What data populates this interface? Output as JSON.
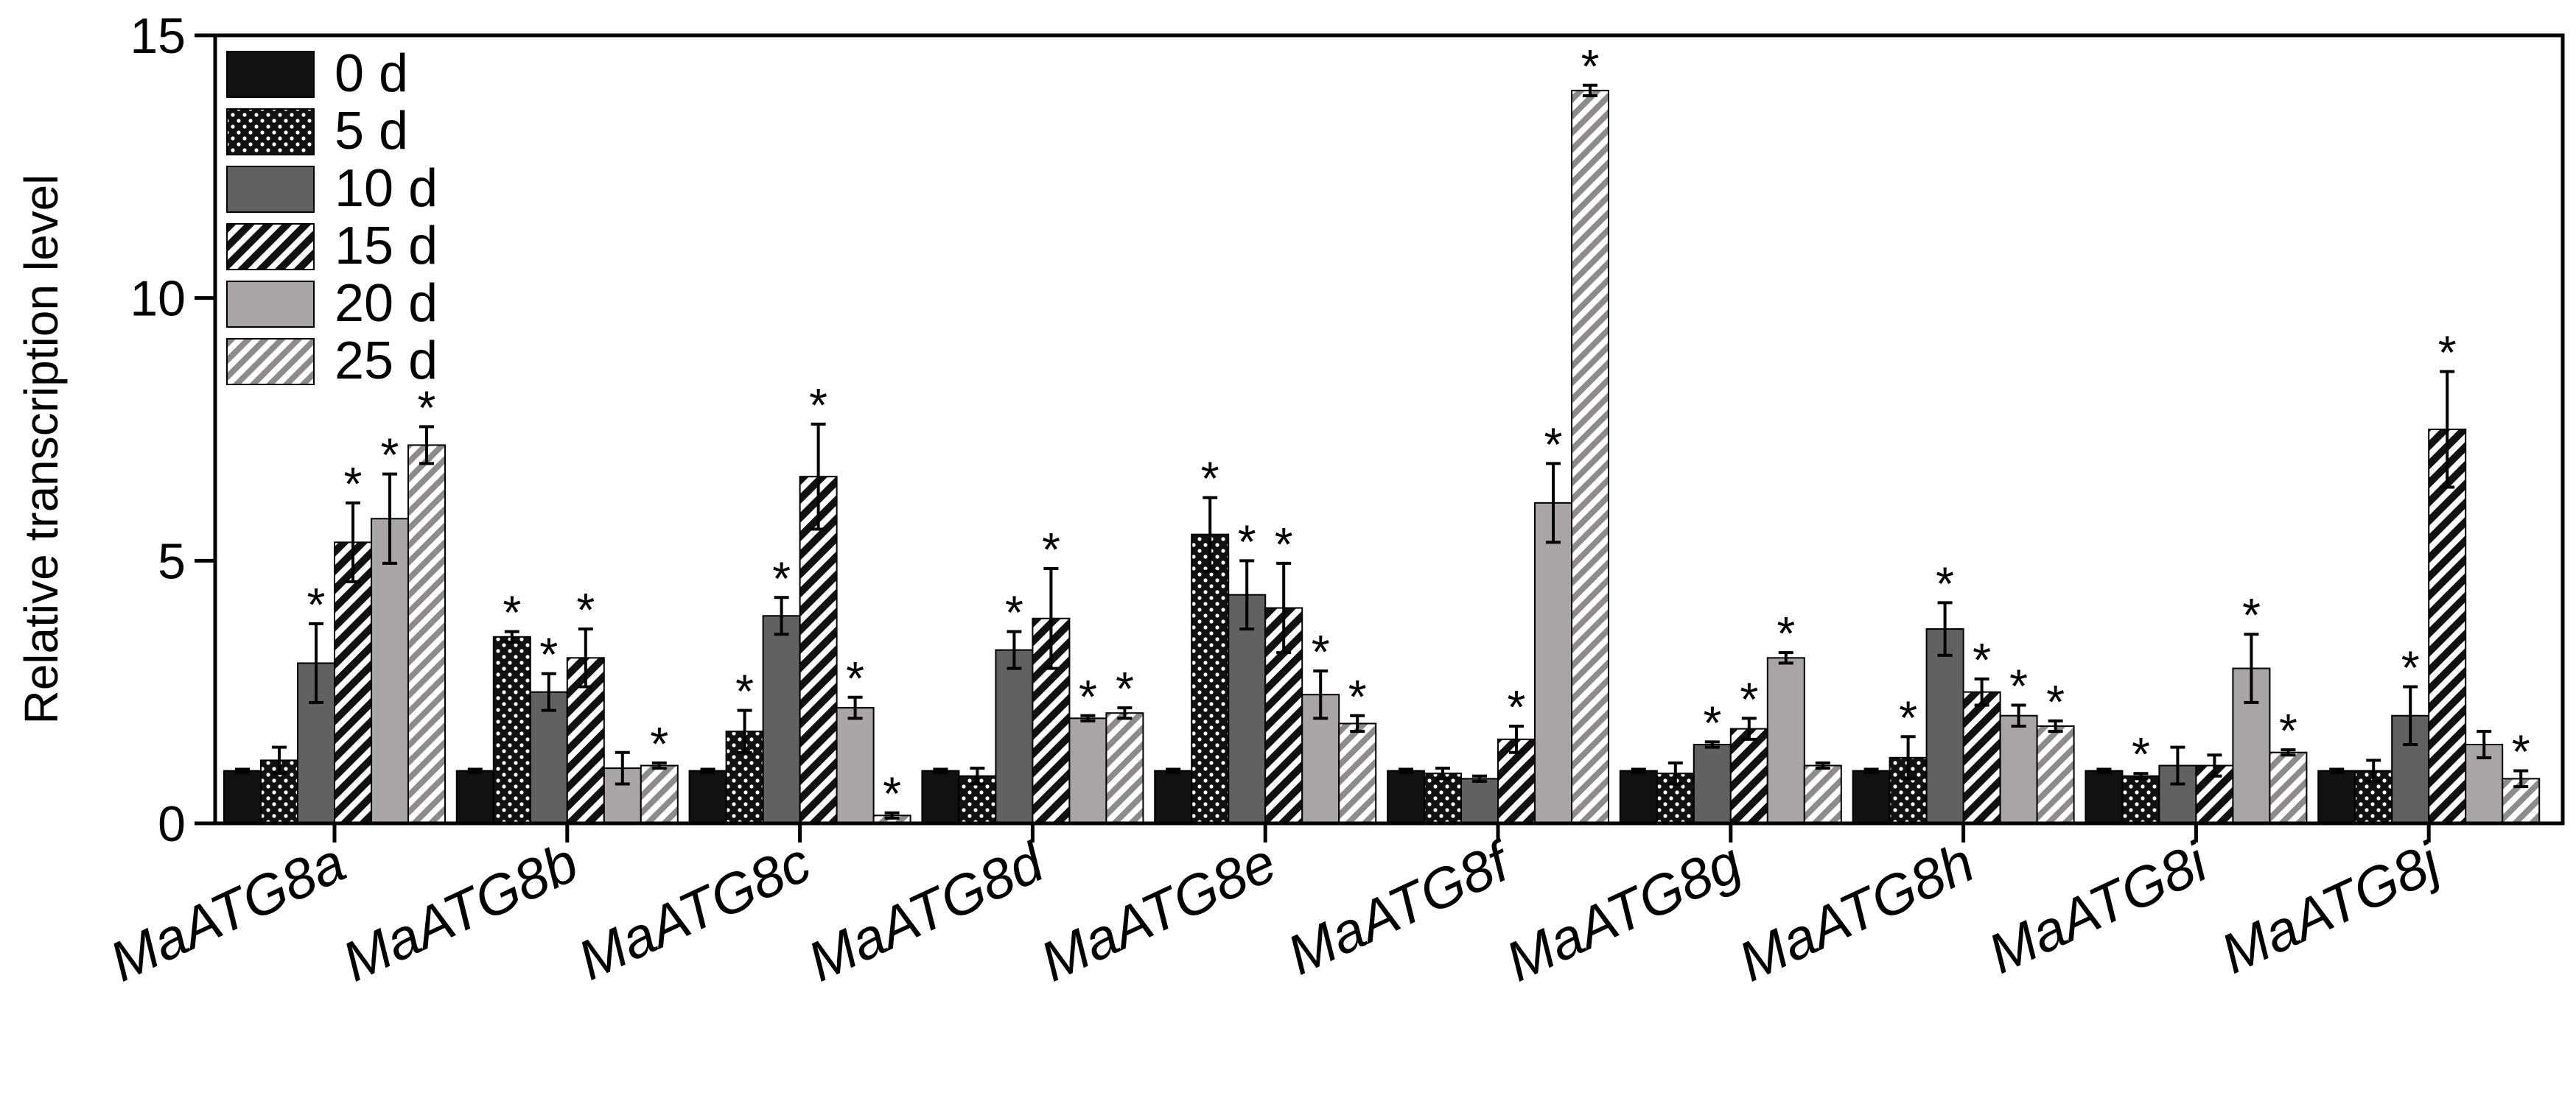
{
  "chart_data": {
    "type": "bar",
    "title": "",
    "xlabel": "",
    "ylabel": "Relative transcription level",
    "ylim": [
      0,
      15
    ],
    "yticks": [
      0,
      5,
      10,
      15
    ],
    "grid": false,
    "legend_position": "top-left",
    "categories": [
      "MaATG8a",
      "MaATG8b",
      "MaATG8c",
      "MaATG8d",
      "MaATG8e",
      "MaATG8f",
      "MaATG8g",
      "MaATG8h",
      "MaATG8i",
      "MaATG8j"
    ],
    "significance_marker": "*",
    "series": [
      {
        "name": "0 d",
        "pattern": "solid-black",
        "values": [
          1.0,
          1.0,
          1.0,
          1.0,
          1.0,
          1.0,
          1.0,
          1.0,
          1.0,
          1.0
        ],
        "errors": [
          0.03,
          0.03,
          0.03,
          0.03,
          0.03,
          0.03,
          0.03,
          0.03,
          0.03,
          0.03
        ],
        "significant": [
          false,
          false,
          false,
          false,
          false,
          false,
          false,
          false,
          false,
          false
        ]
      },
      {
        "name": "5 d",
        "pattern": "black-dotted",
        "values": [
          1.2,
          3.55,
          1.75,
          0.9,
          5.5,
          0.95,
          0.95,
          1.25,
          0.9,
          1.0
        ],
        "errors": [
          0.25,
          0.1,
          0.4,
          0.15,
          0.7,
          0.1,
          0.2,
          0.4,
          0.05,
          0.2
        ],
        "significant": [
          false,
          true,
          true,
          false,
          true,
          false,
          false,
          true,
          true,
          false
        ]
      },
      {
        "name": "10 d",
        "pattern": "dark-gray",
        "values": [
          3.05,
          2.5,
          3.95,
          3.3,
          4.35,
          0.85,
          1.5,
          3.7,
          1.1,
          2.05
        ],
        "errors": [
          0.75,
          0.35,
          0.35,
          0.35,
          0.65,
          0.05,
          0.05,
          0.5,
          0.35,
          0.55
        ],
        "significant": [
          true,
          true,
          true,
          true,
          true,
          false,
          true,
          true,
          false,
          true
        ]
      },
      {
        "name": "15 d",
        "pattern": "black-diagonal",
        "values": [
          5.35,
          3.15,
          6.6,
          3.9,
          4.1,
          1.6,
          1.8,
          2.5,
          1.1,
          7.5
        ],
        "errors": [
          0.75,
          0.55,
          1.0,
          0.95,
          0.85,
          0.25,
          0.2,
          0.25,
          0.2,
          1.1
        ],
        "significant": [
          true,
          true,
          true,
          true,
          true,
          true,
          true,
          true,
          false,
          true
        ]
      },
      {
        "name": "20 d",
        "pattern": "light-gray",
        "values": [
          5.8,
          1.05,
          2.2,
          2.0,
          2.45,
          6.1,
          3.15,
          2.05,
          2.95,
          1.5
        ],
        "errors": [
          0.85,
          0.3,
          0.2,
          0.05,
          0.45,
          0.75,
          0.1,
          0.2,
          0.65,
          0.25
        ],
        "significant": [
          true,
          false,
          true,
          true,
          true,
          true,
          true,
          true,
          true,
          false
        ]
      },
      {
        "name": "25 d",
        "pattern": "gray-diagonal",
        "values": [
          7.2,
          1.1,
          0.15,
          2.1,
          1.9,
          13.95,
          1.1,
          1.85,
          1.35,
          0.85
        ],
        "errors": [
          0.35,
          0.05,
          0.05,
          0.1,
          0.15,
          0.1,
          0.05,
          0.1,
          0.05,
          0.15
        ],
        "significant": [
          true,
          true,
          true,
          true,
          true,
          true,
          false,
          true,
          true,
          true
        ]
      }
    ]
  }
}
